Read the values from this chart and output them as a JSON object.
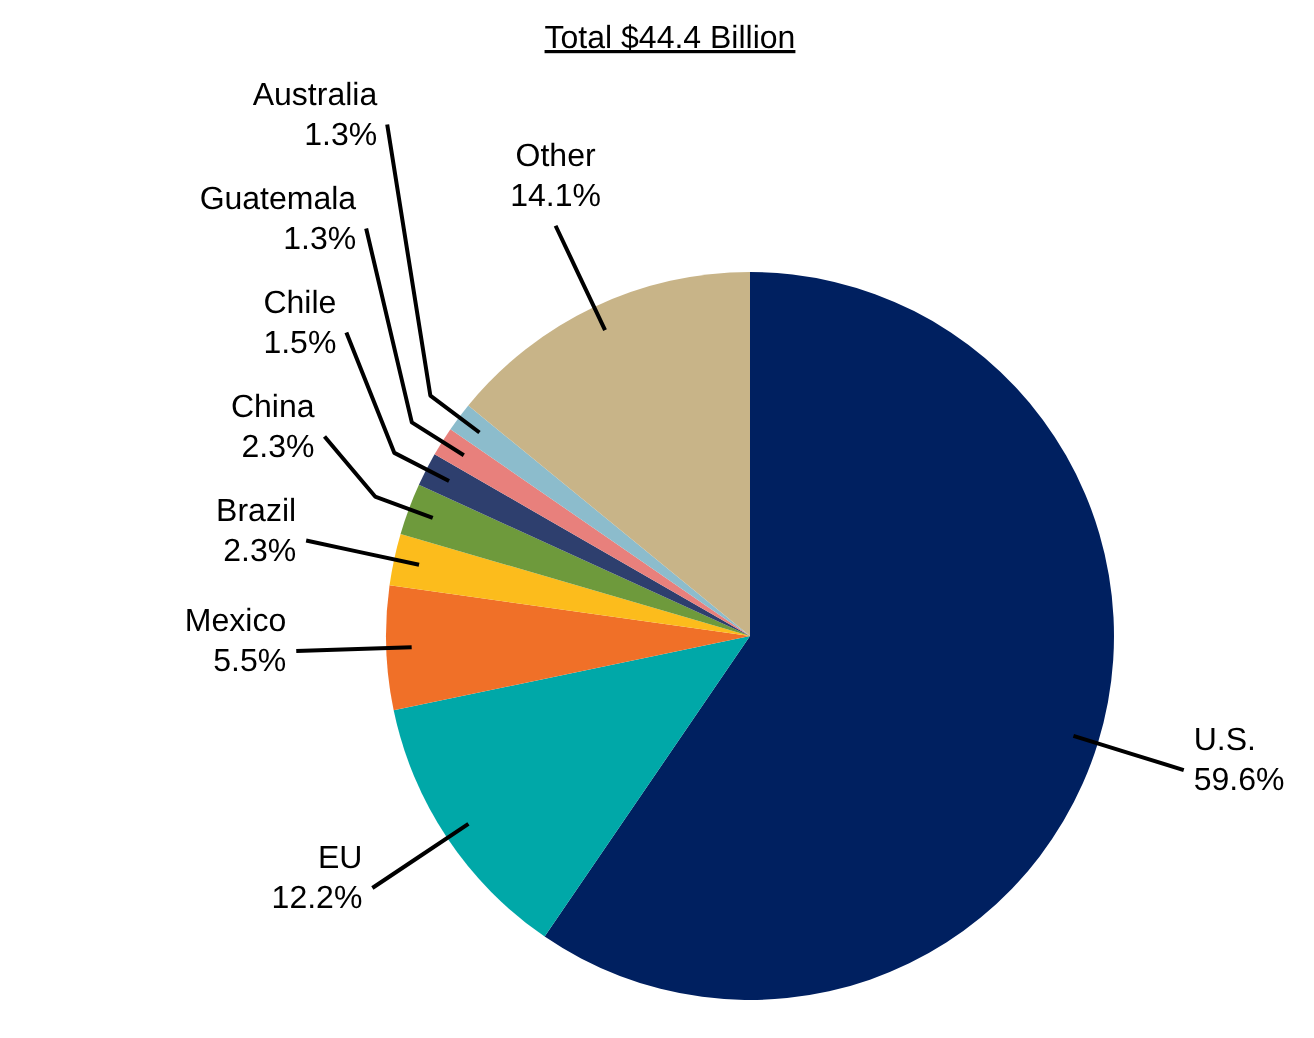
{
  "chart_data": {
    "type": "pie",
    "title": "Total $44.4 Billion",
    "categories": [
      "U.S.",
      "EU",
      "Mexico",
      "Brazil",
      "China",
      "Chile",
      "Guatemala",
      "Australia",
      "Other"
    ],
    "values": [
      59.6,
      12.2,
      5.5,
      2.3,
      2.3,
      1.5,
      1.3,
      1.3,
      14.1
    ],
    "value_labels": [
      "59.6%",
      "12.2%",
      "5.5%",
      "2.3%",
      "2.3%",
      "1.5%",
      "1.3%",
      "1.3%",
      "14.1%"
    ],
    "colors": [
      "#002060",
      "#00a8a8",
      "#f07028",
      "#fcbc1c",
      "#6e9a3c",
      "#2e3f6e",
      "#e8807c",
      "#8cbccc",
      "#c8b488"
    ],
    "data_labels": true
  }
}
